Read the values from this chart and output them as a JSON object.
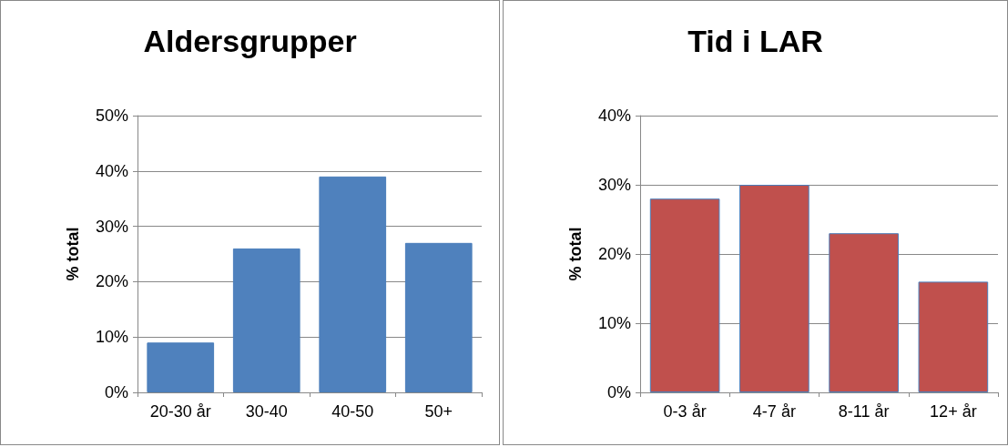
{
  "chart_data": [
    {
      "type": "bar",
      "title": "Aldersgrupper",
      "ylabel": "% total",
      "categories": [
        "20-30 år",
        "30-40",
        "40-50",
        "50+"
      ],
      "values": [
        9,
        26,
        39,
        27
      ],
      "color": "#4f81bd",
      "ylim": [
        0,
        50
      ],
      "yticks": [
        {
          "value": 0,
          "label": "0%"
        },
        {
          "value": 10,
          "label": "10%"
        },
        {
          "value": 20,
          "label": "20%"
        },
        {
          "value": 30,
          "label": "30%"
        },
        {
          "value": 40,
          "label": "40%"
        },
        {
          "value": 50,
          "label": "50%"
        }
      ],
      "grid": "y"
    },
    {
      "type": "bar",
      "title": "Tid i LAR",
      "ylabel": "% total",
      "categories": [
        "0-3 år",
        "4-7 år",
        "8-11 år",
        "12+ år"
      ],
      "values": [
        28,
        30,
        23,
        16
      ],
      "color": "#c0504d",
      "ylim": [
        0,
        40
      ],
      "yticks": [
        {
          "value": 0,
          "label": "0%"
        },
        {
          "value": 10,
          "label": "10%"
        },
        {
          "value": 20,
          "label": "20%"
        },
        {
          "value": 30,
          "label": "30%"
        },
        {
          "value": 40,
          "label": "40%"
        }
      ],
      "grid": "y"
    }
  ]
}
